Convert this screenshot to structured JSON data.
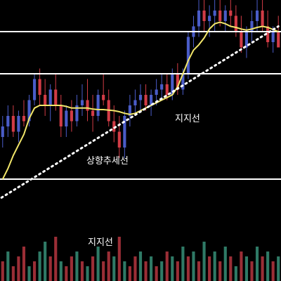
{
  "chart_data": {
    "type": "candlestick",
    "title": "",
    "xlabel": "",
    "ylabel": "",
    "grid": false,
    "colors": {
      "background": "#000000",
      "up": "#4a5cc8",
      "down": "#d23c46",
      "ma": "#f2e66a",
      "support_line": "#ffffff",
      "trendline": "#ffffff",
      "volume_up": "#2f7a66",
      "volume_down": "#9b2e36"
    },
    "annotations": {
      "support_upper": "지지선",
      "trendline": "상향추세선",
      "support_volume": "지지선"
    },
    "price_levels": {
      "resistance": 100,
      "support_mid": 92,
      "support_low": 72
    },
    "price_range": [
      62,
      106
    ],
    "candles": [
      [
        80,
        84,
        78,
        82
      ],
      [
        82,
        86,
        80,
        84
      ],
      [
        84,
        86,
        80,
        81
      ],
      [
        81,
        85,
        79,
        84
      ],
      [
        84,
        87,
        82,
        83
      ],
      [
        83,
        88,
        82,
        87
      ],
      [
        87,
        92,
        86,
        91
      ],
      [
        91,
        93,
        86,
        88
      ],
      [
        88,
        91,
        84,
        86
      ],
      [
        86,
        90,
        83,
        89
      ],
      [
        89,
        92,
        85,
        86
      ],
      [
        86,
        88,
        80,
        82
      ],
      [
        82,
        86,
        80,
        85
      ],
      [
        85,
        87,
        81,
        83
      ],
      [
        83,
        88,
        82,
        86
      ],
      [
        86,
        90,
        84,
        87
      ],
      [
        87,
        91,
        83,
        85
      ],
      [
        85,
        88,
        81,
        84
      ],
      [
        84,
        89,
        83,
        88
      ],
      [
        88,
        92,
        86,
        87
      ],
      [
        87,
        89,
        82,
        83
      ],
      [
        83,
        86,
        79,
        81
      ],
      [
        81,
        84,
        76,
        78
      ],
      [
        78,
        85,
        76,
        84
      ],
      [
        84,
        88,
        82,
        86
      ],
      [
        86,
        89,
        84,
        87
      ],
      [
        87,
        90,
        85,
        88
      ],
      [
        88,
        90,
        85,
        86
      ],
      [
        86,
        89,
        84,
        88
      ],
      [
        88,
        91,
        86,
        89
      ],
      [
        89,
        92,
        87,
        90
      ],
      [
        90,
        92,
        87,
        88
      ],
      [
        88,
        93,
        87,
        92
      ],
      [
        92,
        94,
        88,
        89
      ],
      [
        89,
        93,
        88,
        92
      ],
      [
        92,
        100,
        91,
        99
      ],
      [
        99,
        103,
        97,
        101
      ],
      [
        101,
        106,
        99,
        104
      ],
      [
        104,
        106,
        100,
        102
      ],
      [
        102,
        105,
        99,
        103
      ],
      [
        103,
        106,
        100,
        104
      ],
      [
        104,
        106,
        101,
        102
      ],
      [
        102,
        105,
        100,
        104
      ],
      [
        104,
        106,
        101,
        103
      ],
      [
        103,
        105,
        99,
        100
      ],
      [
        100,
        103,
        96,
        97
      ],
      [
        97,
        101,
        95,
        100
      ],
      [
        100,
        104,
        98,
        102
      ],
      [
        102,
        106,
        100,
        104
      ],
      [
        104,
        106,
        100,
        101
      ],
      [
        101,
        104,
        97,
        98
      ],
      [
        98,
        101,
        96,
        100
      ],
      [
        100,
        103,
        97,
        97
      ]
    ],
    "moving_average": [
      72,
      74,
      76.5,
      78.5,
      80.5,
      83.5,
      85.5,
      86,
      86,
      86,
      86,
      86,
      85.8,
      85.5,
      85.5,
      85.5,
      85.5,
      85.3,
      85.2,
      85.2,
      85.1,
      85,
      84.8,
      84.5,
      84.3,
      84.5,
      85,
      85.5,
      86,
      86.5,
      87,
      87.5,
      88,
      89.5,
      92,
      94.5,
      96.5,
      97.5,
      98.8,
      100.5,
      101.5,
      101.8,
      101.5,
      101,
      100.8,
      100.5,
      100.3,
      100.5,
      100.8,
      101,
      100.8,
      100.4,
      100
    ],
    "trendline_points": [
      [
        0,
        68
      ],
      [
        52,
        101
      ]
    ],
    "volume": [
      [
        4,
        "down"
      ],
      [
        6,
        "up"
      ],
      [
        3,
        "down"
      ],
      [
        5,
        "down"
      ],
      [
        7,
        "down"
      ],
      [
        3,
        "up"
      ],
      [
        4,
        "down"
      ],
      [
        6,
        "up"
      ],
      [
        8,
        "up"
      ],
      [
        5,
        "down"
      ],
      [
        9,
        "down"
      ],
      [
        4,
        "up"
      ],
      [
        3,
        "down"
      ],
      [
        5,
        "down"
      ],
      [
        6,
        "up"
      ],
      [
        4,
        "down"
      ],
      [
        3,
        "up"
      ],
      [
        5,
        "down"
      ],
      [
        7,
        "up"
      ],
      [
        4,
        "down"
      ],
      [
        6,
        "down"
      ],
      [
        5,
        "up"
      ],
      [
        9,
        "down"
      ],
      [
        4,
        "up"
      ],
      [
        3,
        "down"
      ],
      [
        5,
        "down"
      ],
      [
        6,
        "up"
      ],
      [
        4,
        "down"
      ],
      [
        5,
        "up"
      ],
      [
        3,
        "down"
      ],
      [
        4,
        "up"
      ],
      [
        6,
        "down"
      ],
      [
        5,
        "up"
      ],
      [
        4,
        "down"
      ],
      [
        7,
        "up"
      ],
      [
        5,
        "down"
      ],
      [
        6,
        "up"
      ],
      [
        4,
        "down"
      ],
      [
        8,
        "up"
      ],
      [
        5,
        "down"
      ],
      [
        6,
        "up"
      ],
      [
        4,
        "down"
      ],
      [
        7,
        "up"
      ],
      [
        5,
        "down"
      ],
      [
        3,
        "up"
      ],
      [
        6,
        "down"
      ],
      [
        5,
        "up"
      ],
      [
        4,
        "down"
      ],
      [
        7,
        "up"
      ],
      [
        5,
        "down"
      ],
      [
        6,
        "up"
      ],
      [
        4,
        "down"
      ],
      [
        5,
        "up"
      ]
    ],
    "volume_max": 10
  }
}
